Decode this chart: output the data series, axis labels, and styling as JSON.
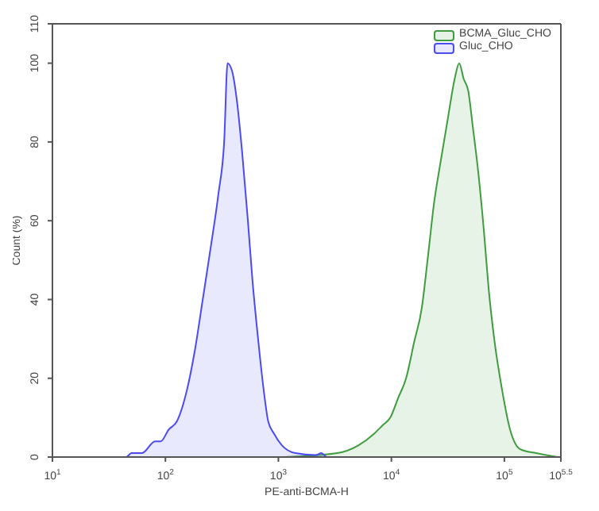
{
  "chart_data": {
    "type": "area",
    "xlabel": "PE-anti-BCMA-H",
    "ylabel": "Count (%)",
    "log": "x",
    "xlim": [
      10,
      316228
    ],
    "xticks": [
      {
        "value": 10,
        "label": "10$^{1}$"
      },
      {
        "value": 100,
        "label": "10$^{2}$"
      },
      {
        "value": 1000,
        "label": "10$^{3}$"
      },
      {
        "value": 10000,
        "label": "10$^{4}$"
      },
      {
        "value": 100000,
        "label": "10$^{5}$"
      },
      {
        "value": 316228,
        "label": "10$^{5.5}$"
      }
    ],
    "ylim": [
      0,
      110
    ],
    "yticks": [
      0,
      20,
      40,
      60,
      80,
      100,
      110
    ],
    "grid": false,
    "legend": "top right",
    "series": [
      {
        "name": "BCMA_Gluc_CHO",
        "color": "#3f9c3f",
        "x": [
          1122,
          3311,
          5129,
          7079,
          8318,
          9772,
          11482,
          13490,
          15849,
          18621,
          20893,
          23988,
          26915,
          31623,
          36308,
          39811,
          43652,
          47863,
          52481,
          58884,
          66069,
          72444,
          81283,
          95499,
          112202,
          138038,
          190546,
          295121
        ],
        "values": [
          0,
          1,
          3,
          6,
          8,
          10,
          15,
          20,
          29,
          38,
          50,
          65,
          74,
          86,
          96,
          100,
          96,
          93,
          84,
          72,
          57,
          43,
          30,
          17,
          7,
          2,
          1,
          0
        ]
      },
      {
        "name": "Gluc_CHO",
        "color": "#4b4bf0",
        "x": [
          10,
          45,
          50,
          62,
          81,
          91,
          107,
          126,
          155,
          182,
          214,
          251,
          295,
          331,
          355,
          389,
          427,
          479,
          537,
          589,
          661,
          741,
          813,
          912,
          1072,
          1413,
          2138,
          2399,
          2692,
          6310
        ],
        "values": [
          0,
          0,
          1,
          1,
          4,
          4,
          7,
          9,
          17,
          27,
          40,
          53,
          67,
          80,
          100,
          98,
          91,
          77,
          60,
          45,
          30,
          17,
          9,
          6,
          3,
          1,
          0.5,
          1,
          0,
          0
        ]
      }
    ]
  }
}
